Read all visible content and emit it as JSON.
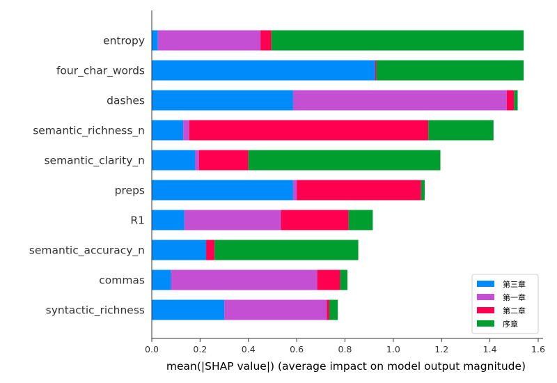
{
  "chart_data": {
    "type": "bar",
    "orientation": "horizontal",
    "stacked": true,
    "xlabel": "mean(|SHAP value|) (average impact on model output magnitude)",
    "xlim": [
      0,
      1.6
    ],
    "xticks": [
      "0.0",
      "0.2",
      "0.4",
      "0.6",
      "0.8",
      "1.0",
      "1.2",
      "1.4",
      "1.6"
    ],
    "grid": false,
    "legend_position": "bottom-right",
    "categories": [
      "entropy",
      "four_char_words",
      "dashes",
      "semantic_richness_n",
      "semantic_clarity_n",
      "preps",
      "R1",
      "semantic_accuracy_n",
      "commas",
      "syntactic_richness"
    ],
    "series": [
      {
        "name": "第三章",
        "color": "#008bfb",
        "values": [
          0.025,
          0.925,
          0.585,
          0.13,
          0.18,
          0.585,
          0.135,
          0.225,
          0.08,
          0.3
        ]
      },
      {
        "name": "第一章",
        "color": "#c44fd2",
        "values": [
          0.425,
          0.0,
          0.885,
          0.025,
          0.015,
          0.015,
          0.4,
          0.0,
          0.605,
          0.425
        ]
      },
      {
        "name": "第二章",
        "color": "#ff0051",
        "values": [
          0.045,
          0.005,
          0.03,
          0.99,
          0.205,
          0.515,
          0.28,
          0.035,
          0.095,
          0.01
        ]
      },
      {
        "name": "序章",
        "color": "#009e2f",
        "values": [
          1.045,
          0.61,
          0.015,
          0.27,
          0.795,
          0.015,
          0.1,
          0.595,
          0.03,
          0.035
        ]
      }
    ]
  }
}
